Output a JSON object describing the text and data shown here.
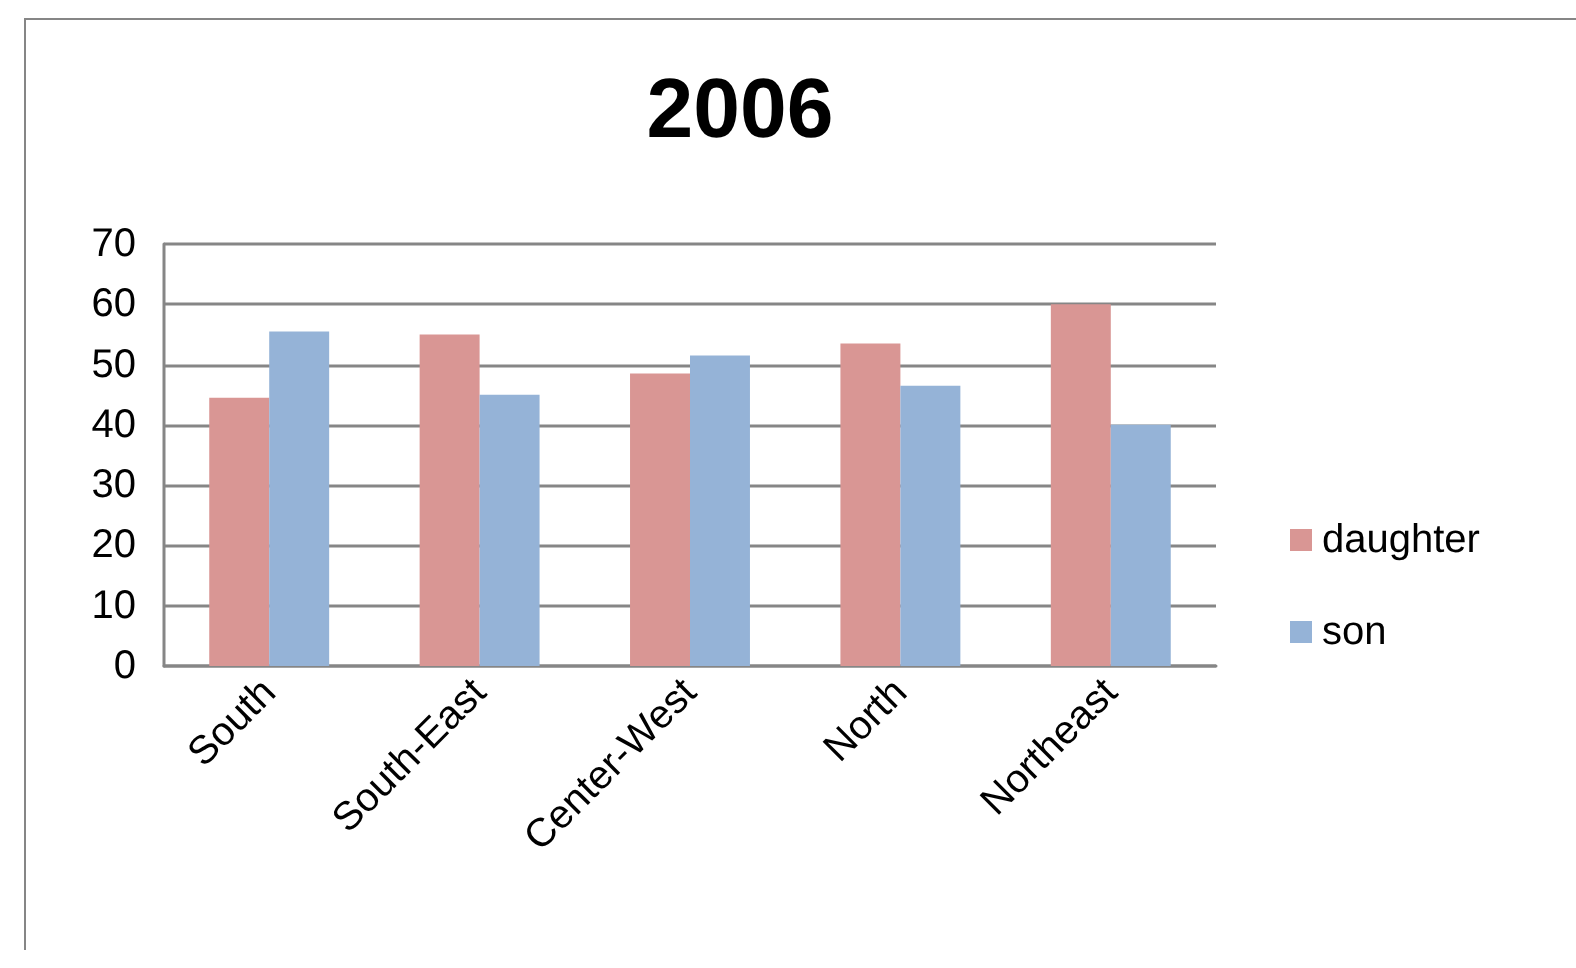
{
  "chart_data": {
    "type": "bar",
    "title": "2006",
    "categories": [
      "South",
      "South-East",
      "Center-West",
      "North",
      "Northeast"
    ],
    "series": [
      {
        "name": "daughter",
        "color": "#d99694",
        "values": [
          44.5,
          55,
          48.5,
          53.5,
          60
        ]
      },
      {
        "name": "son",
        "color": "#95b3d7",
        "values": [
          55.5,
          45,
          51.5,
          46.5,
          40
        ]
      }
    ],
    "ylim": [
      0,
      70
    ],
    "yticks": [
      0,
      10,
      20,
      30,
      40,
      50,
      60,
      70
    ],
    "grid": "y",
    "legend": "right"
  }
}
